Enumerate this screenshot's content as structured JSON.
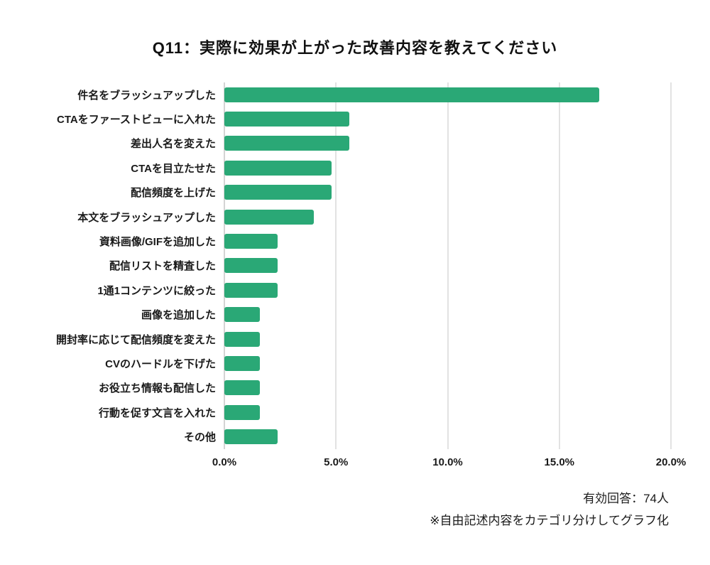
{
  "page": {
    "title": "Q11：実際に効果が上がった改善内容を教えてください",
    "notes": [
      "有効回答：74人",
      "※自由記述内容をカテゴリ分けしてグラフ化"
    ]
  },
  "chart_data": {
    "type": "bar",
    "orientation": "horizontal",
    "title": "Q11：実際に効果が上がった改善内容を教えてください",
    "categories": [
      "件名をブラッシュアップした",
      "CTAをファーストビューに入れた",
      "差出人名を変えた",
      "CTAを目立たせた",
      "配信頻度を上げた",
      "本文をブラッシュアップした",
      "資料画像/GIFを追加した",
      "配信リストを精査した",
      "1通1コンテンツに絞った",
      "画像を追加した",
      "開封率に応じて配信頻度を変えた",
      "CVのハードルを下げた",
      "お役立ち情報も配信した",
      "行動を促す文言を入れた",
      "その他"
    ],
    "values": [
      16.8,
      5.6,
      5.6,
      4.8,
      4.8,
      4.0,
      2.4,
      2.4,
      2.4,
      1.6,
      1.6,
      1.6,
      1.6,
      1.6,
      2.4
    ],
    "xlabel": "",
    "ylabel": "",
    "xlim": [
      0,
      20
    ],
    "x_ticks": [
      {
        "value": 0,
        "label": "0.0%"
      },
      {
        "value": 5,
        "label": "5.0%"
      },
      {
        "value": 10,
        "label": "10.0%"
      },
      {
        "value": 15,
        "label": "15.0%"
      },
      {
        "value": 20,
        "label": "20.0%"
      }
    ],
    "grid": true,
    "legend": false,
    "bar_color": "#2aa876"
  }
}
